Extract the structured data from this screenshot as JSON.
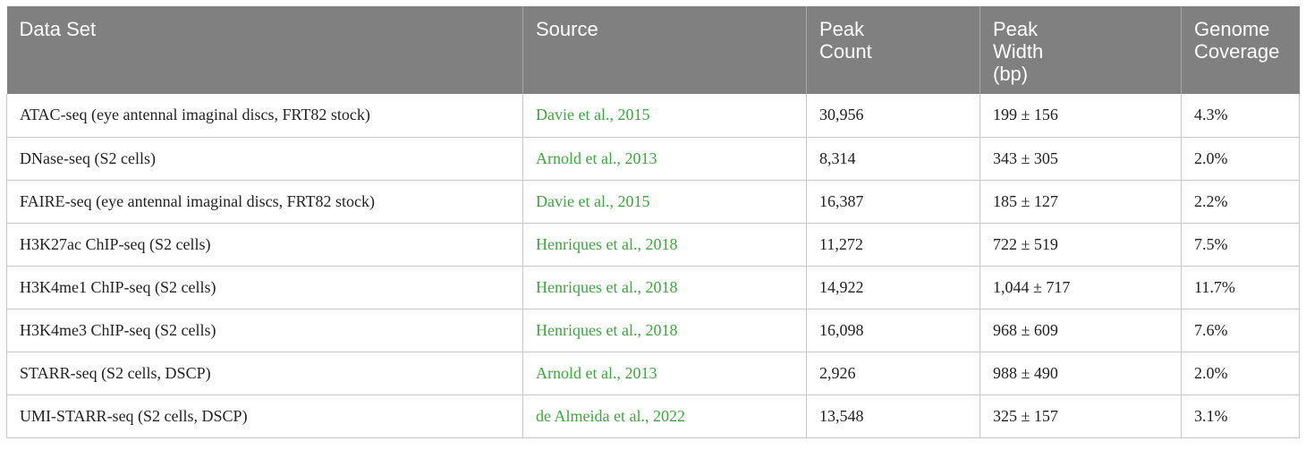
{
  "table": {
    "headers": [
      "Data Set",
      "Source",
      "Peak\nCount",
      "Peak\nWidth\n(bp)",
      "Genome\nCoverage"
    ],
    "rows": [
      [
        "ATAC-seq (eye antennal imaginal discs, FRT82 stock)",
        "Davie et al., 2015",
        "30,956",
        "199 ± 156",
        "4.3%"
      ],
      [
        "DNase-seq (S2 cells)",
        "Arnold et al., 2013",
        "8,314",
        "343 ± 305",
        "2.0%"
      ],
      [
        "FAIRE-seq (eye antennal imaginal discs, FRT82 stock)",
        "Davie et al., 2015",
        "16,387",
        "185 ± 127",
        "2.2%"
      ],
      [
        "H3K27ac ChIP-seq (S2 cells)",
        "Henriques et al., 2018",
        "11,272",
        "722 ± 519",
        "7.5%"
      ],
      [
        "H3K4me1 ChIP-seq (S2 cells)",
        "Henriques et al., 2018",
        "14,922",
        "1,044 ± 717",
        "11.7%"
      ],
      [
        "H3K4me3 ChIP-seq (S2 cells)",
        "Henriques et al., 2018",
        "16,098",
        "968 ± 609",
        "7.6%"
      ],
      [
        "STARR-seq (S2 cells, DSCP)",
        "Arnold et al., 2013",
        "2,926",
        "988 ± 490",
        "2.0%"
      ],
      [
        "UMI-STARR-seq (S2 cells, DSCP)",
        "de Almeida et al., 2022",
        "13,548",
        "325 ± 157",
        "3.1%"
      ]
    ]
  },
  "colors": {
    "header_bg": "#808080",
    "header_text": "#ffffff",
    "link": "#3ea63e",
    "border": "#c8c8c8"
  }
}
